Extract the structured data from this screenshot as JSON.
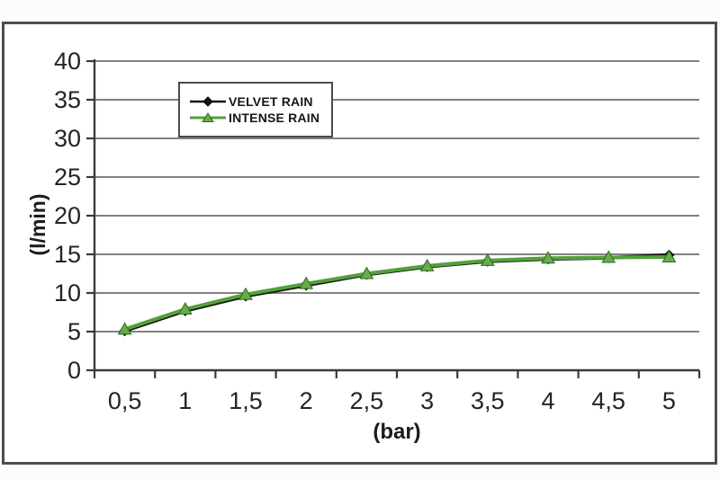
{
  "window": {
    "background": "#fcfcfc"
  },
  "colors": {
    "frame_border": "#4d4d4d",
    "grid": "#6f6f6f",
    "axis": "#3a3a3a",
    "tick_text": "#242424",
    "legend_border": "#4a4a4a"
  },
  "chart_data": {
    "type": "line",
    "title": "",
    "xlabel": "(bar)",
    "ylabel": "(l/min)",
    "x": [
      0.5,
      1,
      1.5,
      2,
      2.5,
      3,
      3.5,
      4,
      4.5,
      5
    ],
    "x_tick_labels": [
      "0,5",
      "1",
      "1,5",
      "2",
      "2,5",
      "3",
      "3,5",
      "4",
      "4,5",
      "5"
    ],
    "ylim": [
      0,
      40
    ],
    "ytick_step": 5,
    "y_tick_labels": [
      "0",
      "5",
      "10",
      "15",
      "20",
      "25",
      "30",
      "35",
      "40"
    ],
    "grid": true,
    "legend_position": "top-left-inside",
    "series": [
      {
        "name": "VELVET RAIN",
        "color": "#141414",
        "marker": "diamond",
        "marker_fill": "#141414",
        "marker_edge": "#000000",
        "values": [
          5.1,
          7.7,
          9.6,
          11.0,
          12.4,
          13.4,
          14.1,
          14.4,
          14.55,
          14.9
        ]
      },
      {
        "name": "INTENSE RAIN",
        "color": "#55a03c",
        "marker": "triangle",
        "marker_fill": "#67ab4a",
        "marker_edge": "#2e6b22",
        "values": [
          5.3,
          7.9,
          9.8,
          11.2,
          12.5,
          13.5,
          14.2,
          14.5,
          14.6,
          14.65
        ]
      }
    ]
  }
}
